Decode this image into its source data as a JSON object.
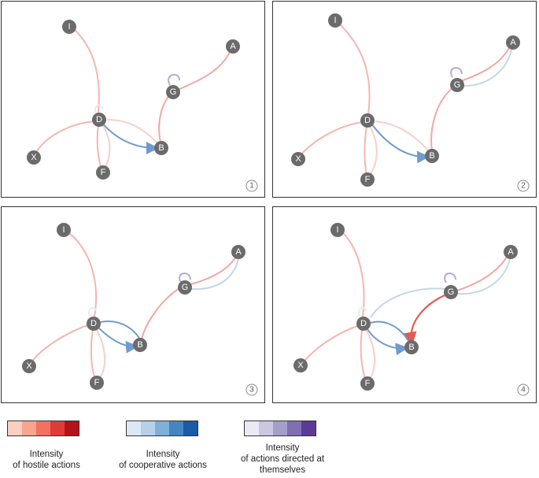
{
  "nodes": {
    "I": "I",
    "A": "A",
    "G": "G",
    "D": "D",
    "B": "B",
    "X": "X",
    "F": "F"
  },
  "panels": [
    {
      "number": "1"
    },
    {
      "number": "2"
    },
    {
      "number": "3"
    },
    {
      "number": "4"
    }
  ],
  "legend": {
    "hostile": {
      "label_line1": "Intensity",
      "label_line2": "of hostile actions",
      "colors": [
        "#fcd0c1",
        "#f9a58e",
        "#f27161",
        "#e03a3a",
        "#b41419"
      ]
    },
    "cooperative": {
      "label_line1": "Intensity",
      "label_line2": "of cooperative actions",
      "colors": [
        "#dce8f5",
        "#b6d0ea",
        "#7eb0d8",
        "#4386c2",
        "#1a5ba6"
      ]
    },
    "self": {
      "label_line1": "Intensity",
      "label_line2": "of actions directed at",
      "label_line3": "themselves",
      "colors": [
        "#ebe9f3",
        "#cbc7e2",
        "#a49ecb",
        "#7f6fb3",
        "#5c3b96"
      ]
    }
  },
  "colors": {
    "node_fill": "#6b6b6b",
    "hostile_light": "#f4b6b0",
    "hostile_strong": "#e45a55",
    "cooperative": "#6f9bd0",
    "cooperative_light": "#c4d6ea",
    "self": "#b9a8d8"
  }
}
